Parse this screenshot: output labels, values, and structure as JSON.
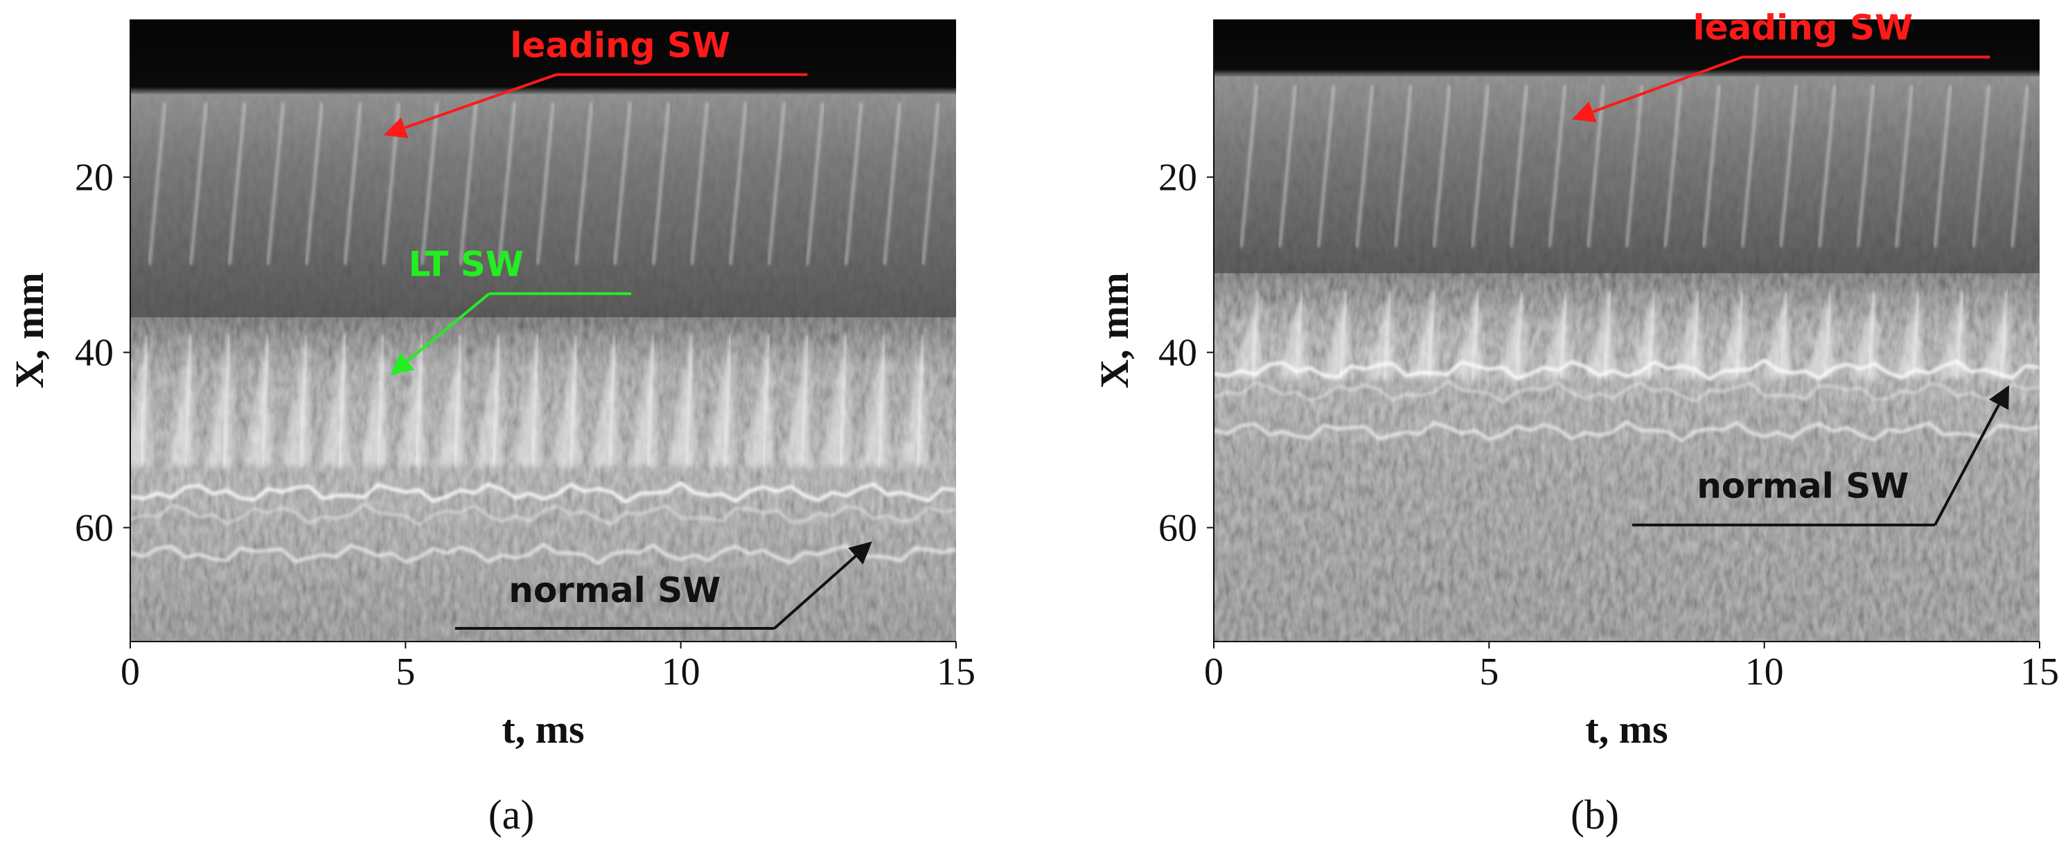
{
  "colors": {
    "leading": "#ff1a1a",
    "lt": "#22ee22",
    "normal": "#111111",
    "axis": "#111111"
  },
  "chart_data": [
    {
      "type": "heatmap",
      "panel_label": "(a)",
      "xlabel": "t, ms",
      "ylabel": "X, mm",
      "xlim": [
        0,
        15
      ],
      "ylim": [
        73,
        2
      ],
      "y_inverted": true,
      "xticks": [
        0,
        5,
        10,
        15
      ],
      "yticks": [
        20,
        40,
        60
      ],
      "dark_band_end_mm": 10,
      "lt_region_start_mm": 38,
      "normal_sw_mm": 57,
      "normal_sw_band_mm": [
        55,
        64
      ],
      "leading_streak_times_ms": [
        0.35,
        1.1,
        1.8,
        2.5,
        3.2,
        3.9,
        4.6,
        5.3,
        6.0,
        6.7,
        7.4,
        8.1,
        8.8,
        9.5,
        10.2,
        10.9,
        11.6,
        12.3,
        13.0,
        13.7,
        14.4
      ],
      "lt_peak_times_ms": [
        0.3,
        1.1,
        1.8,
        2.5,
        3.2,
        3.9,
        4.6,
        5.3,
        6.0,
        6.7,
        7.4,
        8.1,
        8.8,
        9.5,
        10.2,
        10.9,
        11.6,
        12.3,
        13.0,
        13.7,
        14.4
      ],
      "annotations": [
        {
          "text": "leading SW",
          "color_key": "leading",
          "label_t": 8.9,
          "label_x": 6.3,
          "line_end_t": 12.3,
          "line_end_x": 8.3,
          "arrow_tip_t": 4.7,
          "arrow_tip_x": 15.0
        },
        {
          "text": "LT SW",
          "color_key": "lt",
          "label_t": 6.1,
          "label_x": 31.3,
          "line_end_t": 9.1,
          "line_end_x": 33.3,
          "arrow_tip_t": 4.8,
          "arrow_tip_x": 42.2
        },
        {
          "text": "normal SW",
          "color_key": "normal",
          "label_t": 8.8,
          "label_x": 68.5,
          "line_end_t": 5.9,
          "line_end_x": 71.5,
          "arrow_tip_t": 13.4,
          "arrow_tip_x": 62.0
        }
      ]
    },
    {
      "type": "heatmap",
      "panel_label": "(b)",
      "xlabel": "t, ms",
      "ylabel": "X, mm",
      "xlim": [
        0,
        15
      ],
      "ylim": [
        73,
        2
      ],
      "y_inverted": true,
      "xticks": [
        0,
        5,
        10,
        15
      ],
      "yticks": [
        20,
        40,
        60
      ],
      "dark_band_end_mm": 8,
      "lt_region_start_mm": 33,
      "normal_sw_mm": 44,
      "normal_sw_band_mm": [
        41,
        50
      ],
      "leading_streak_times_ms": [
        0.5,
        1.2,
        1.9,
        2.6,
        3.3,
        4.0,
        4.7,
        5.4,
        6.1,
        6.8,
        7.5,
        8.2,
        8.9,
        9.6,
        10.3,
        11.0,
        11.7,
        12.4,
        13.1,
        13.8,
        14.5
      ],
      "lt_peak_times_ms": [
        0.8,
        1.6,
        2.4,
        3.2,
        4.0,
        4.8,
        5.6,
        6.4,
        7.2,
        8.0,
        8.8,
        9.6,
        10.4,
        11.2,
        12.0,
        12.8,
        13.6,
        14.4
      ],
      "annotations": [
        {
          "text": "leading SW",
          "color_key": "leading",
          "label_t": 10.7,
          "label_x": 4.3,
          "line_end_t": 14.1,
          "line_end_x": 6.3,
          "arrow_tip_t": 6.6,
          "arrow_tip_x": 13.2
        },
        {
          "text": "normal SW",
          "color_key": "normal",
          "label_t": 10.7,
          "label_x": 56.6,
          "line_end_t": 7.6,
          "line_end_x": 59.7,
          "arrow_tip_t": 14.4,
          "arrow_tip_x": 44.3
        }
      ]
    }
  ]
}
